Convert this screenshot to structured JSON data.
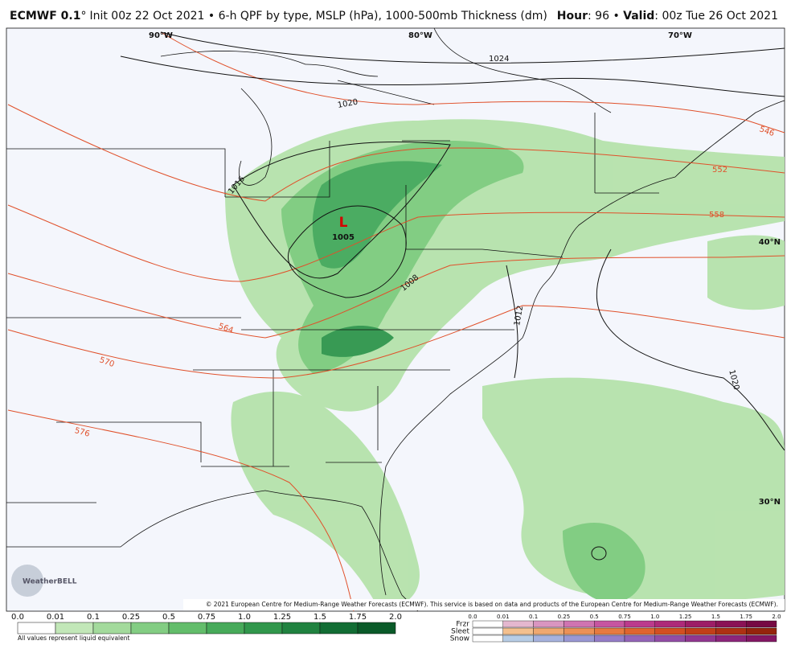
{
  "header": {
    "model": "ECMWF 0.1",
    "degree": "°",
    "init": "Init 00z 22 Oct 2021 • 6-h QPF by type, MSLP (hPa), 1000-500mb Thickness (dm)",
    "hour_label": "Hour",
    "hour": ": 96 • ",
    "valid_label": "Valid",
    "valid": ": 00z Tue 26 Oct 2021"
  },
  "map": {
    "longitudes": [
      "90°W",
      "80°W",
      "70°W"
    ],
    "latitudes": [
      "40°N",
      "30°N"
    ],
    "isobars": [
      "1024",
      "1020",
      "1016",
      "1008",
      "1012",
      "1020"
    ],
    "thickness": [
      "546",
      "552",
      "558",
      "564",
      "570",
      "576"
    ],
    "low": {
      "symbol": "L",
      "pressure": "1005"
    },
    "logo": "WeatherBELL",
    "credit": "© 2021 European Centre for Medium-Range Weather Forecasts (ECMWF). This service is based on data and products of the European Centre for Medium-Range Weather Forecasts (ECMWF)."
  },
  "legend": {
    "rain_ticks": [
      "0.0",
      "0.01",
      "0.1",
      "0.25",
      "0.5",
      "0.75",
      "1.0",
      "1.25",
      "1.5",
      "1.75",
      "2.0"
    ],
    "note": "All values represent liquid equivalent",
    "ptype_ticks": [
      "0.0",
      "0.01",
      "0.1",
      "0.25",
      "0.5",
      "0.75",
      "1.0",
      "1.25",
      "1.5",
      "1.75",
      "2.0"
    ],
    "ptypes": [
      "Frzr",
      "Sleet",
      "Snow"
    ]
  }
}
